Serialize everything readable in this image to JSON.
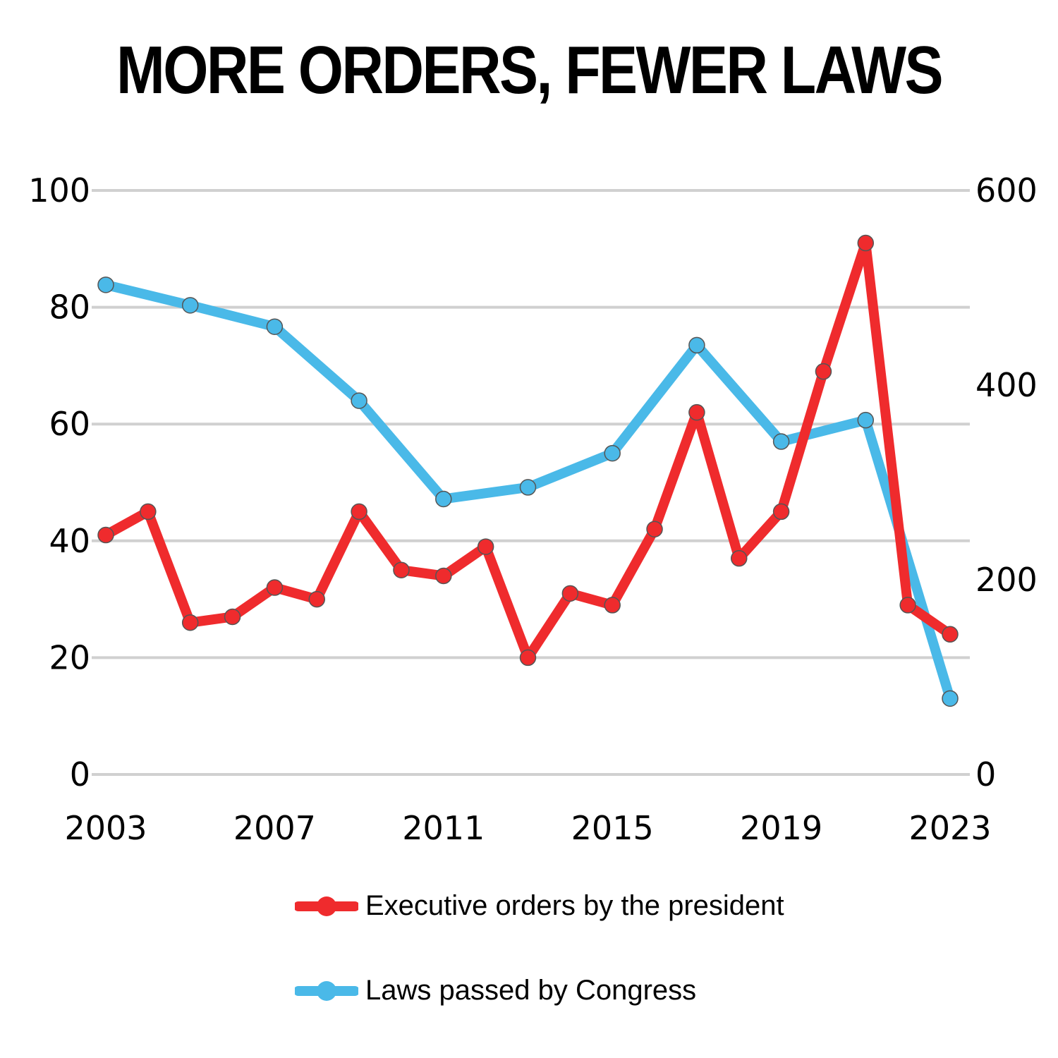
{
  "chart_data": {
    "type": "line",
    "title": "MORE ORDERS, FEWER LAWS",
    "x_ticks": [
      "2003",
      "2007",
      "2011",
      "2015",
      "2019",
      "2023"
    ],
    "y_left_ticks": [
      "0",
      "20",
      "40",
      "60",
      "80",
      "100"
    ],
    "y_right_ticks": [
      "0",
      "200",
      "400",
      "600"
    ],
    "ylim_left": [
      0,
      100
    ],
    "ylim_right": [
      0,
      600
    ],
    "grid": true,
    "legend_position": "bottom",
    "series": [
      {
        "name": "Executive orders by the president",
        "axis": "left",
        "color": "#ef2b2d",
        "x": [
          2003,
          2004,
          2005,
          2006,
          2007,
          2008,
          2009,
          2010,
          2011,
          2012,
          2013,
          2014,
          2015,
          2016,
          2017,
          2018,
          2019,
          2020,
          2021,
          2022,
          2023
        ],
        "values": [
          41,
          45,
          26,
          27,
          32,
          30,
          45,
          35,
          34,
          39,
          20,
          31,
          29,
          42,
          62,
          37,
          45,
          69,
          91,
          29,
          24
        ]
      },
      {
        "name": "Laws passed by Congress",
        "axis": "right",
        "color": "#4ab9e8",
        "x": [
          2003,
          2005,
          2007,
          2009,
          2011,
          2013,
          2015,
          2017,
          2019,
          2021,
          2023
        ],
        "values": [
          503,
          482,
          460,
          384,
          283,
          295,
          330,
          441,
          342,
          364,
          78
        ]
      }
    ]
  }
}
